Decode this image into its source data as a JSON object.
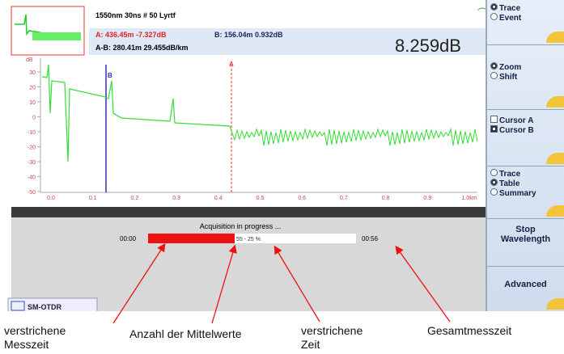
{
  "header": {
    "info": "1550nm 30ns # 50 Lyrtf",
    "cursor_a": "A: 436.45m -7.327dB",
    "cursor_b": "B: 156.04m 0.932dB",
    "delta": "A-B: 280.41m 29.455dB/km",
    "loss": "8.259dB"
  },
  "graph": {
    "y_unit": "dB",
    "y_labels": [
      "30",
      "20",
      "10",
      "0",
      "-10",
      "-20",
      "-30",
      "-40",
      "-50"
    ],
    "x_labels": [
      "0.0",
      "0.1",
      "0.2",
      "0.3",
      "0.4",
      "0.5",
      "0.6",
      "0.7",
      "0.8",
      "0.9",
      "1.0km"
    ],
    "marker_b": "B",
    "marker_a": "A"
  },
  "progress": {
    "status": "Acquisition in progress ...",
    "elapsed": "00:00",
    "averages": "55 - 25 %",
    "total": "00:56"
  },
  "side_panel": {
    "groups": [
      {
        "kind": "radio",
        "options": [
          "Trace",
          "Event"
        ],
        "selected": 0
      },
      {
        "kind": "radio",
        "options": [
          "Zoom",
          "Shift"
        ],
        "selected": 0
      },
      {
        "kind": "check",
        "options": [
          "Cursor A",
          "Cursor B"
        ],
        "selected": 1
      },
      {
        "kind": "radio",
        "options": [
          "Trace",
          "Table",
          "Summary"
        ],
        "selected": 1
      }
    ],
    "stop_lines": [
      "Stop",
      "Wavelength"
    ],
    "advanced": "Advanced"
  },
  "tab": "SM-OTDR",
  "annotations": [
    {
      "lines": [
        "verstrichene",
        "Messzeit"
      ]
    },
    {
      "lines": [
        "Anzahl der Mittelwerte"
      ]
    },
    {
      "lines": [
        "verstrichene",
        "Zeit"
      ]
    },
    {
      "lines": [
        "Gesamtmesszeit"
      ]
    }
  ]
}
